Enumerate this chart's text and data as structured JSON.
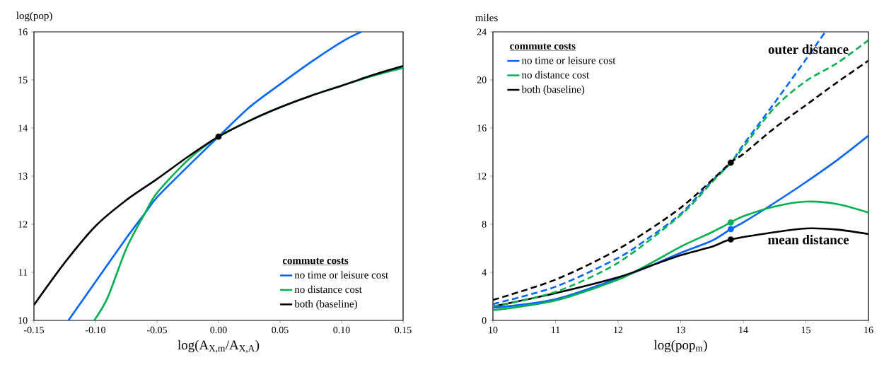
{
  "chart_data": [
    {
      "type": "line",
      "ylabel": "log(pop)",
      "xlabel": "log(A$_{X,m}$/A$_{X,A}$)",
      "legend_title": "commute costs",
      "legend": "bottom right",
      "xlim": [
        -0.15,
        0.15
      ],
      "ylim": [
        10,
        16
      ],
      "xticks": [
        {
          "value": -0.15,
          "label": "-0.15"
        },
        {
          "value": -0.1,
          "label": "-0.10"
        },
        {
          "value": -0.05,
          "label": "-0.05"
        },
        {
          "value": 0,
          "label": "0.00"
        },
        {
          "value": 0.05,
          "label": "0.05"
        },
        {
          "value": 0.1,
          "label": "0.10"
        },
        {
          "value": 0.15,
          "label": "0.15"
        }
      ],
      "yticks": [
        10,
        11,
        12,
        13,
        14,
        15,
        16
      ],
      "series": [
        {
          "name": "no time or leisure cost",
          "color": "#0066ff",
          "x": [
            -0.122,
            -0.1,
            -0.075,
            -0.06,
            -0.05,
            -0.025,
            0,
            0.025,
            0.05,
            0.075,
            0.1,
            0.116
          ],
          "values": [
            10,
            10.8,
            11.71,
            12.22,
            12.56,
            13.2,
            13.82,
            14.43,
            14.91,
            15.37,
            15.79,
            16
          ]
        },
        {
          "name": "no distance cost",
          "color": "#00b050",
          "x": [
            -0.101,
            -0.09,
            -0.075,
            -0.06,
            -0.05,
            -0.025,
            0,
            0.025,
            0.05,
            0.075,
            0.1,
            0.125,
            0.15
          ],
          "values": [
            10,
            10.48,
            11.49,
            12.22,
            12.65,
            13.33,
            13.82,
            14.15,
            14.43,
            14.67,
            14.88,
            15.08,
            15.25
          ]
        },
        {
          "name": "both (baseline)",
          "color": "#000000",
          "x": [
            -0.15,
            -0.125,
            -0.1,
            -0.075,
            -0.05,
            -0.025,
            0,
            0.025,
            0.05,
            0.075,
            0.1,
            0.125,
            0.15
          ],
          "values": [
            10.32,
            11.2,
            11.96,
            12.5,
            12.94,
            13.4,
            13.82,
            14.15,
            14.43,
            14.67,
            14.88,
            15.1,
            15.29
          ]
        },
        {
          "type": "scatter",
          "color": "#000000",
          "x": [
            0
          ],
          "values": [
            13.82
          ]
        }
      ]
    },
    {
      "type": "line",
      "ylabel": "miles",
      "xlabel": "log(pop$_{m}$)",
      "legend_title": "commute costs",
      "legend": "top left",
      "xlim": [
        10,
        16
      ],
      "ylim": [
        0,
        24
      ],
      "xticks": [
        10,
        11,
        12,
        13,
        14,
        15,
        16
      ],
      "yticks": [
        0,
        4,
        8,
        12,
        16,
        20,
        24
      ],
      "annotations": [
        "outer distance",
        "mean distance"
      ],
      "series": [
        {
          "name": "no time or leisure cost",
          "color": "#0066ff",
          "x": [
            10,
            11,
            12,
            12.5,
            13,
            13.5,
            13.8,
            14,
            14.5,
            15,
            15.5,
            16
          ],
          "values": [
            1.05,
            1.76,
            3.49,
            4.5,
            5.62,
            6.63,
            7.59,
            8.15,
            9.78,
            11.5,
            13.33,
            15.36
          ]
        },
        {
          "name": "no distance cost",
          "color": "#00b050",
          "x": [
            10,
            11,
            12,
            12.5,
            13,
            13.5,
            13.8,
            14,
            14.5,
            15,
            15.5,
            16
          ],
          "values": [
            0.85,
            1.66,
            3.39,
            4.7,
            6.13,
            7.34,
            8.15,
            8.66,
            9.47,
            9.88,
            9.68,
            8.97
          ]
        },
        {
          "name": "both (baseline)",
          "color": "#000000",
          "x": [
            10,
            11,
            12,
            12.5,
            13,
            13.5,
            13.8,
            14.5,
            15,
            15.5,
            16
          ],
          "values": [
            1.16,
            2.27,
            3.59,
            4.5,
            5.42,
            6.13,
            6.73,
            7.34,
            7.65,
            7.55,
            7.18
          ]
        },
        {
          "color": "#0066ff",
          "line_style": "dashed",
          "x": [
            10,
            11,
            12,
            12.5,
            13,
            13.5,
            13.8,
            14,
            14.5,
            15,
            15.31
          ],
          "values": [
            1.36,
            2.8,
            5.2,
            6.9,
            8.86,
            11.6,
            13.1,
            14.6,
            18.1,
            21.7,
            24
          ]
        },
        {
          "color": "#00b050",
          "line_style": "dashed",
          "x": [
            10,
            11,
            12,
            13,
            13.5,
            13.8,
            14,
            14.5,
            15,
            15.5,
            16
          ],
          "values": [
            1.16,
            2.37,
            4.8,
            8.76,
            11.5,
            13.1,
            14.4,
            17.7,
            19.9,
            21.4,
            23.3
          ]
        },
        {
          "color": "#000000",
          "line_style": "dashed",
          "x": [
            10,
            11,
            12,
            13,
            13.8,
            14,
            14.5,
            15,
            15.5,
            16
          ],
          "values": [
            1.7,
            3.39,
            5.92,
            9.37,
            13.12,
            13.83,
            16.0,
            17.9,
            19.8,
            21.6
          ]
        },
        {
          "type": "scatter",
          "color": "#0066ff",
          "x": [
            13.8
          ],
          "values": [
            7.59
          ]
        },
        {
          "type": "scatter",
          "color": "#00b050",
          "x": [
            13.8
          ],
          "values": [
            8.15
          ]
        },
        {
          "type": "scatter",
          "color": "#000000",
          "x": [
            13.8
          ],
          "values": [
            6.73
          ]
        },
        {
          "type": "scatter",
          "color": "#000000",
          "x": [
            13.8
          ],
          "values": [
            13.12
          ]
        }
      ]
    }
  ]
}
